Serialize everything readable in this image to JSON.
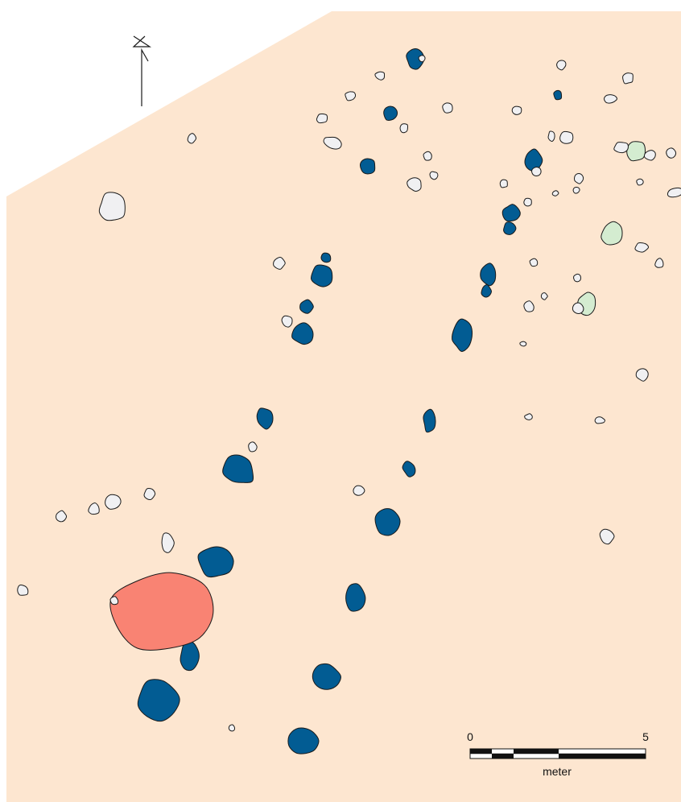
{
  "map": {
    "colors": {
      "background": "#fde6d0",
      "posthole": "#025c93",
      "stone": "#f0f0f2",
      "green_feature": "#d4ecd0",
      "hearth": "#f98373",
      "outline": "#1a1a1a"
    },
    "north_arrow": {
      "label": "N",
      "icon": "north-arrow-icon"
    },
    "scale_bar": {
      "start_label": "0",
      "end_label": "5",
      "unit_label": "meter",
      "length_m": 5
    }
  }
}
